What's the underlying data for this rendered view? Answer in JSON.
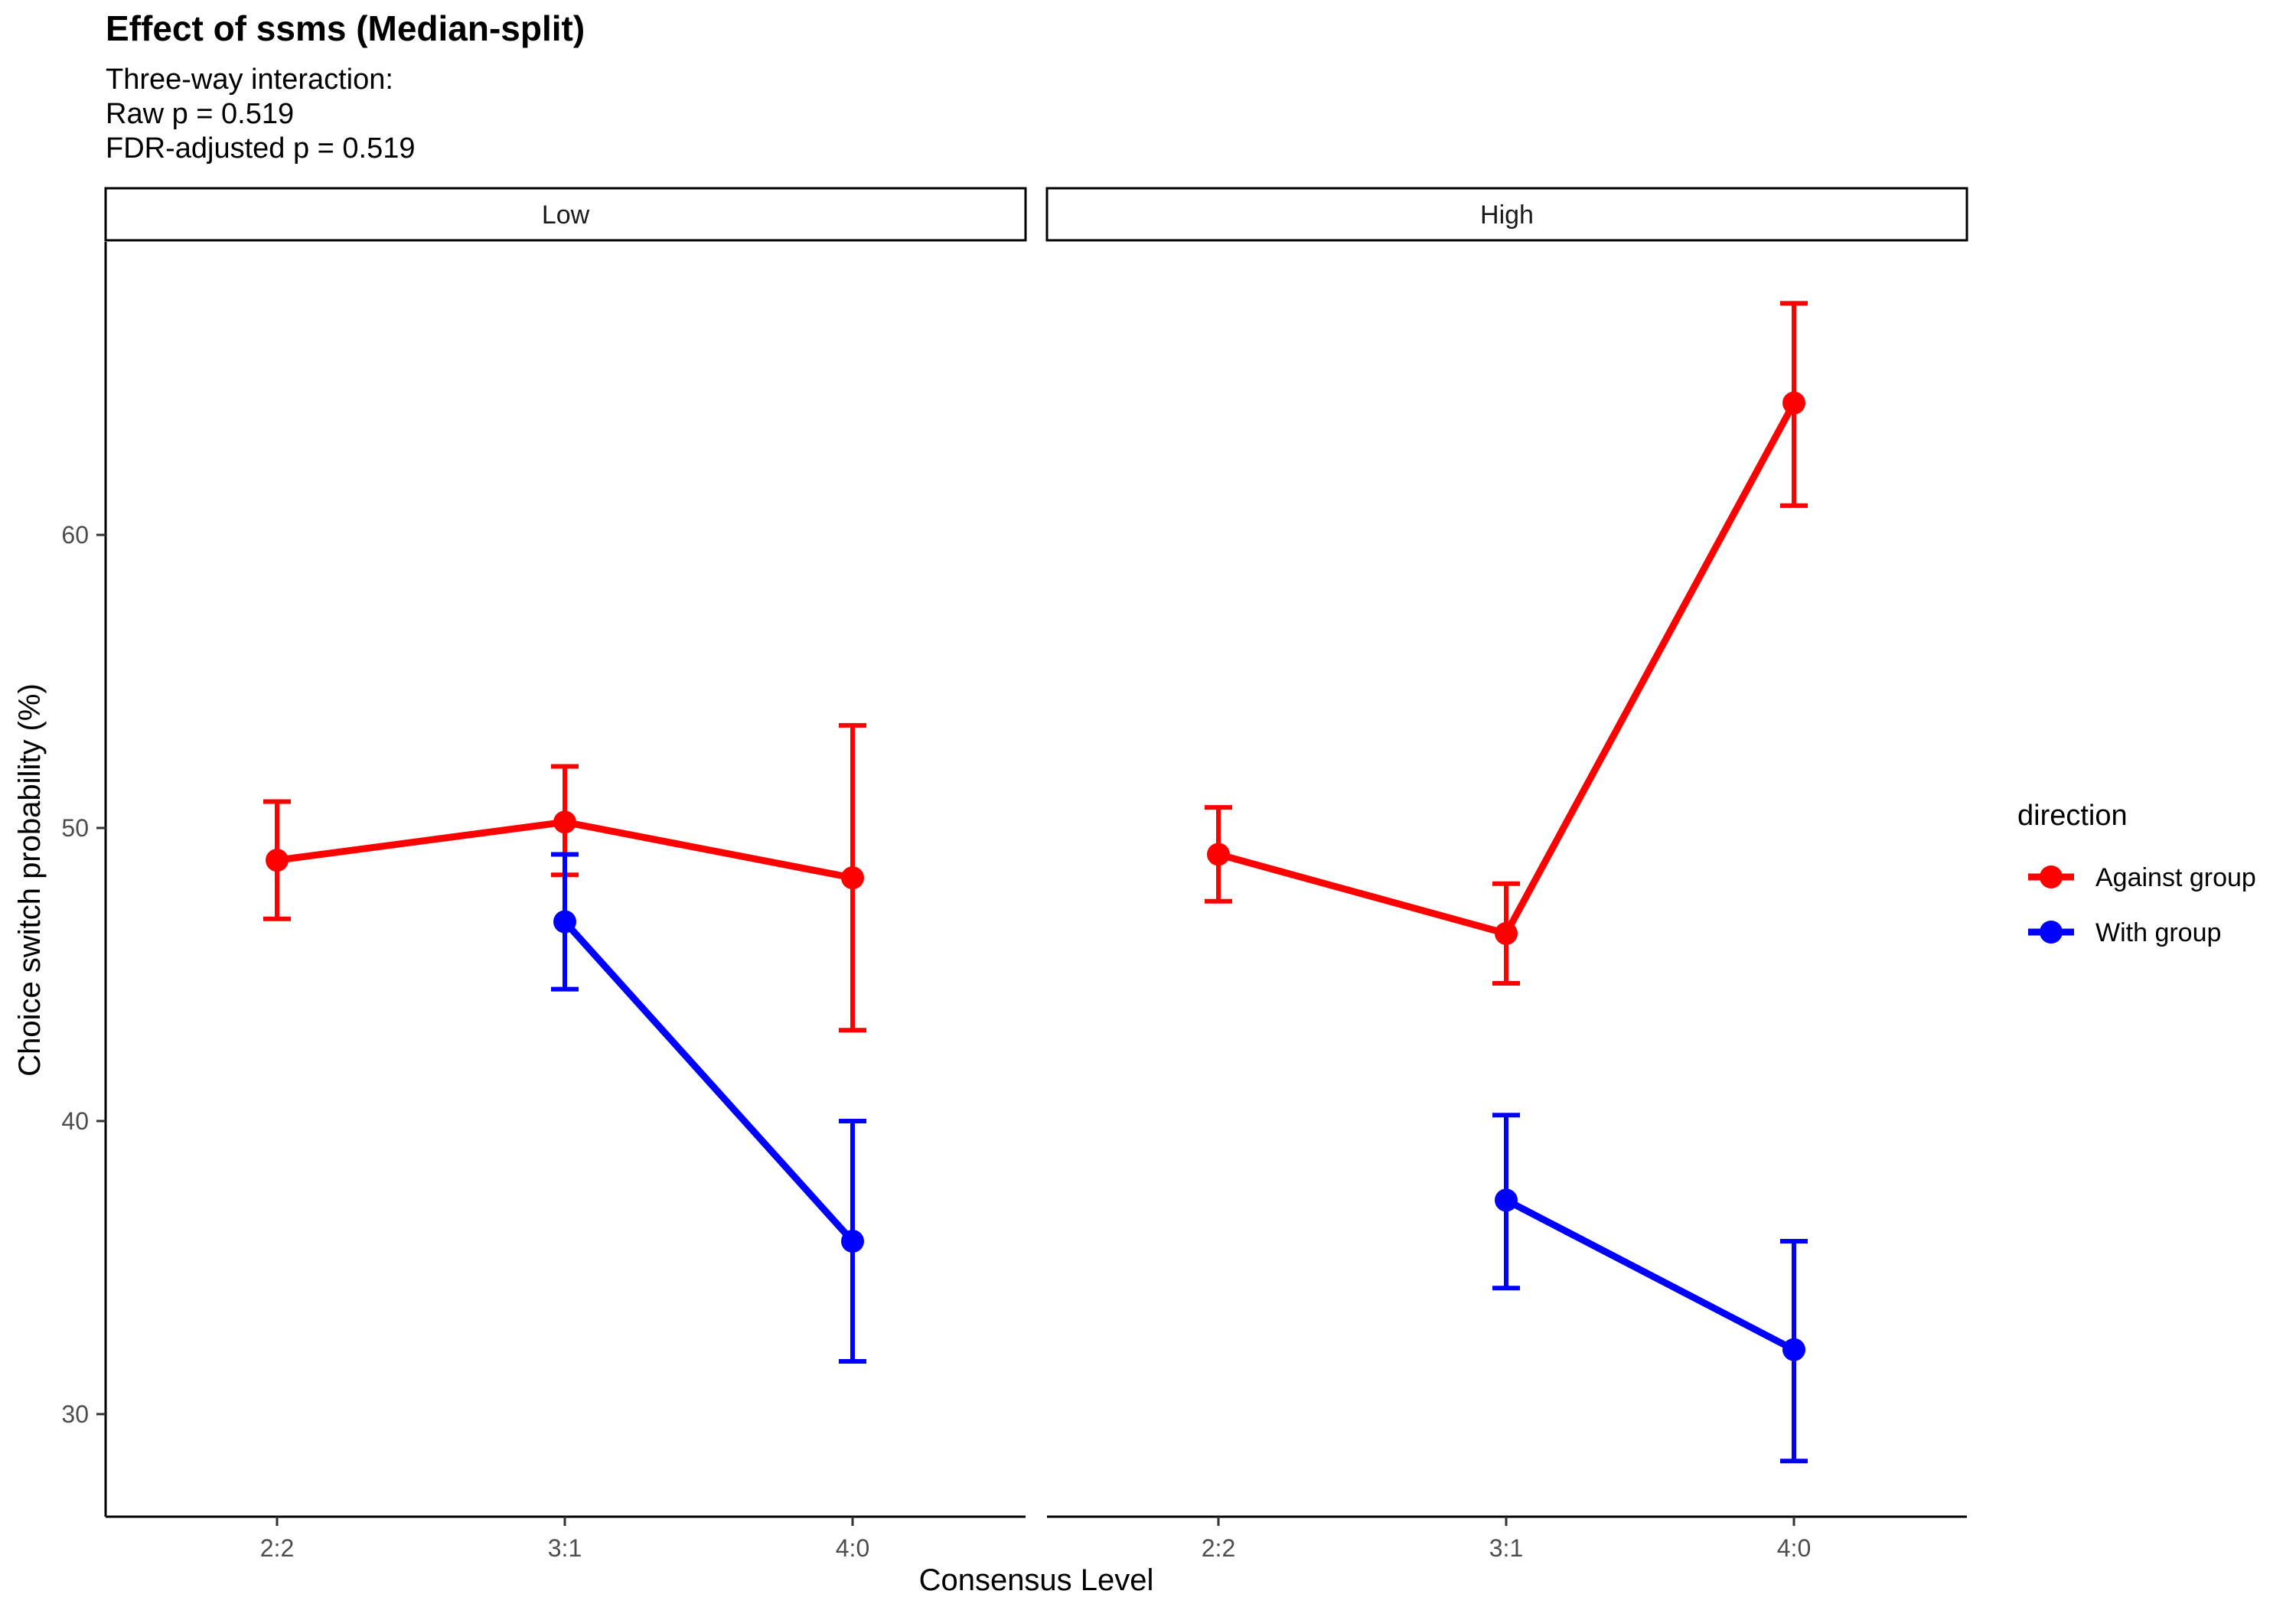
{
  "chart_data": {
    "type": "line",
    "title": "Effect of ssms (Median-split)",
    "subtitle_lines": [
      "Three-way interaction:",
      "Raw p = 0.519",
      "FDR-adjusted p = 0.519"
    ],
    "xlabel": "Consensus Level",
    "ylabel": "Choice switch probability (%)",
    "categories": [
      "2:2",
      "3:1",
      "4:0"
    ],
    "yticks": [
      30,
      40,
      50,
      60
    ],
    "ylim": [
      26.5,
      70
    ],
    "grid": false,
    "legend": {
      "title": "direction",
      "position": "right",
      "entries": [
        "Against group",
        "With group"
      ]
    },
    "panels": [
      {
        "label": "Low",
        "series": [
          {
            "name": "Against group",
            "color": "#ff0000",
            "points": [
              {
                "x": "2:2",
                "y": 48.9,
                "lo": 46.9,
                "hi": 50.9
              },
              {
                "x": "3:1",
                "y": 50.2,
                "lo": 48.4,
                "hi": 52.1
              },
              {
                "x": "4:0",
                "y": 48.3,
                "lo": 43.1,
                "hi": 53.5
              }
            ]
          },
          {
            "name": "With group",
            "color": "#0000ff",
            "points": [
              {
                "x": "3:1",
                "y": 46.8,
                "lo": 44.5,
                "hi": 49.1
              },
              {
                "x": "4:0",
                "y": 35.9,
                "lo": 31.8,
                "hi": 40.0
              }
            ]
          }
        ]
      },
      {
        "label": "High",
        "series": [
          {
            "name": "Against group",
            "color": "#ff0000",
            "points": [
              {
                "x": "2:2",
                "y": 49.1,
                "lo": 47.5,
                "hi": 50.7
              },
              {
                "x": "3:1",
                "y": 46.4,
                "lo": 44.7,
                "hi": 48.1
              },
              {
                "x": "4:0",
                "y": 64.5,
                "lo": 61.0,
                "hi": 67.9
              }
            ]
          },
          {
            "name": "With group",
            "color": "#0000ff",
            "points": [
              {
                "x": "3:1",
                "y": 37.3,
                "lo": 34.3,
                "hi": 40.2
              },
              {
                "x": "4:0",
                "y": 32.2,
                "lo": 28.4,
                "hi": 35.9
              }
            ]
          }
        ]
      }
    ]
  }
}
